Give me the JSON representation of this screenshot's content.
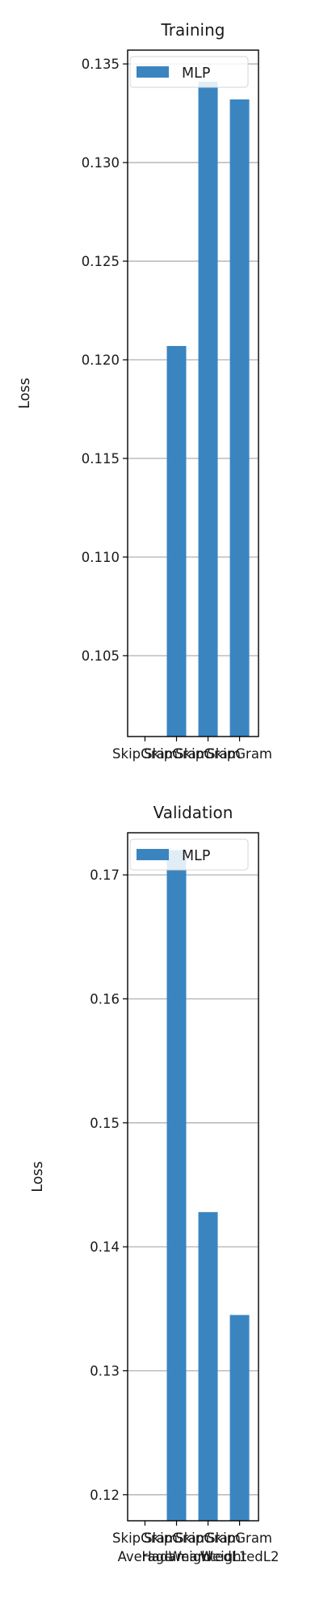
{
  "chart_data": [
    {
      "type": "bar",
      "title": "Training",
      "xlabel": "",
      "ylabel": "Loss",
      "categories": [
        "SkipGram",
        "SkipGram",
        "SkipGram",
        "SkipGram"
      ],
      "categories_line2": [],
      "series": [
        {
          "name": "MLP",
          "values": [
            0.1005,
            0.1207,
            0.1341,
            0.1332
          ],
          "color": "#3a85c0"
        }
      ],
      "ylim": [
        0.1009,
        0.1357
      ],
      "yticks": [
        0.105,
        0.11,
        0.115,
        0.12,
        0.125,
        0.13,
        0.135
      ],
      "ytick_labels": [
        "0.105",
        "0.110",
        "0.115",
        "0.120",
        "0.125",
        "0.130",
        "0.135"
      ],
      "grid": true,
      "legend": "top-left"
    },
    {
      "type": "bar",
      "title": "Validation",
      "xlabel": "",
      "ylabel": "Loss",
      "categories": [
        "SkipGram",
        "SkipGram",
        "SkipGram",
        "SkipGram"
      ],
      "categories_line2": [
        "Average",
        "Hadamard",
        "WeightedL1",
        "WeightedL2"
      ],
      "series": [
        {
          "name": "MLP",
          "values": [
            0.1175,
            0.172,
            0.1428,
            0.1345
          ],
          "color": "#3a85c0"
        }
      ],
      "ylim": [
        0.1179,
        0.1734
      ],
      "yticks": [
        0.12,
        0.13,
        0.14,
        0.15,
        0.16,
        0.17
      ],
      "ytick_labels": [
        "0.12",
        "0.13",
        "0.14",
        "0.15",
        "0.16",
        "0.17"
      ],
      "grid": true,
      "legend": "top-left"
    }
  ]
}
